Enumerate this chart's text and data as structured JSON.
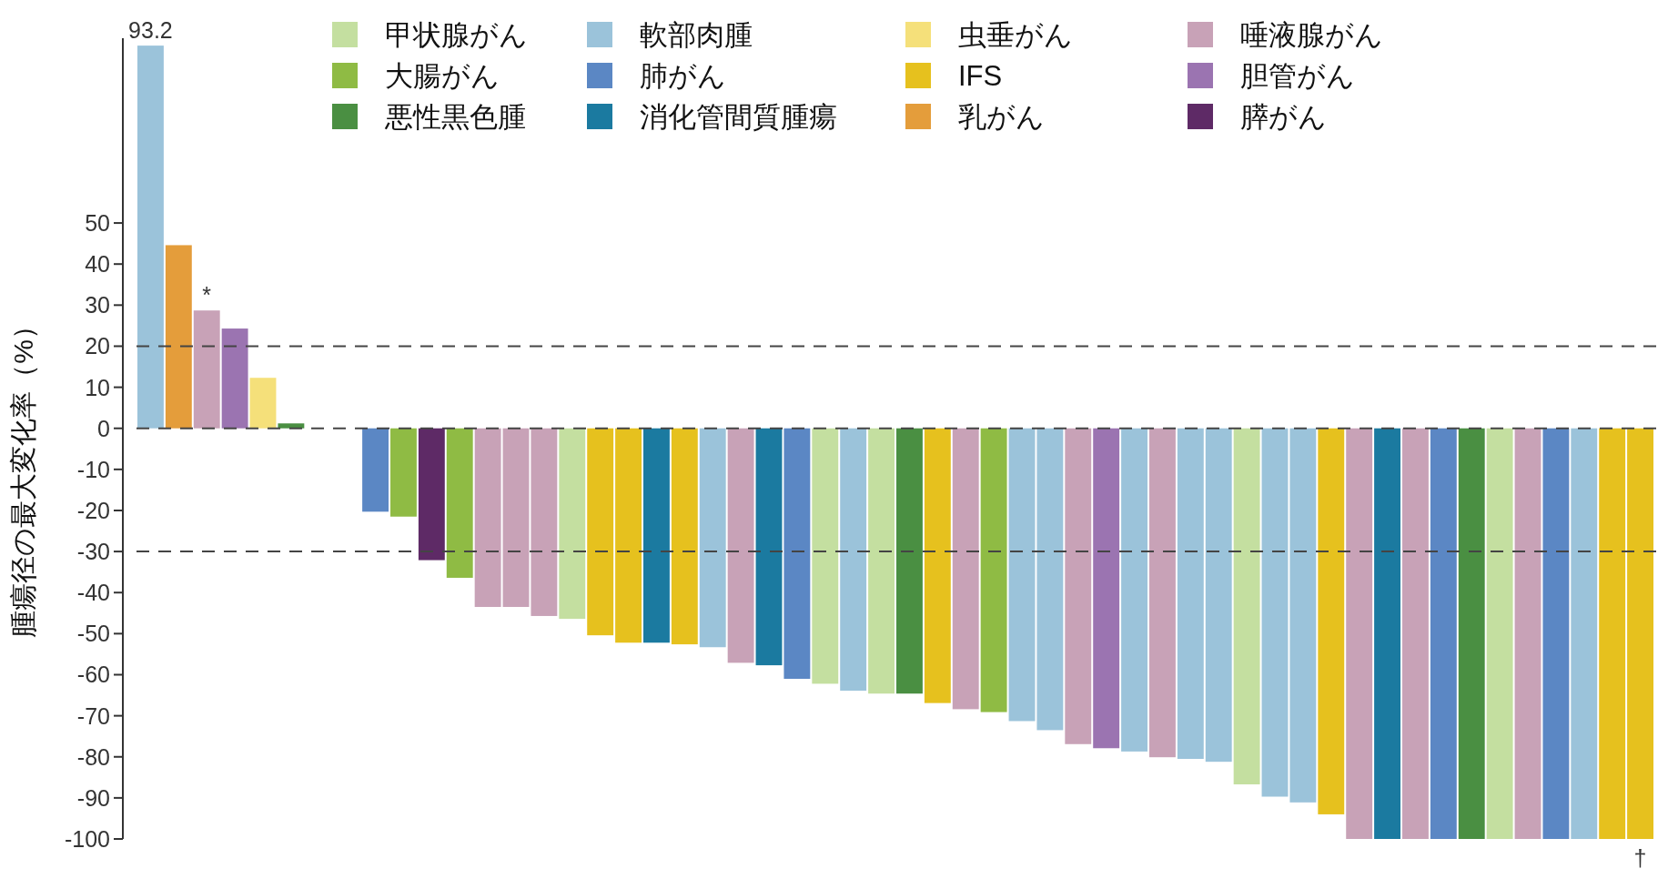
{
  "chart_data": {
    "type": "bar",
    "ylabel": "腫瘍径の最大変化率（%）",
    "categories": [
      null,
      null,
      null,
      null,
      null,
      null,
      null,
      null,
      null,
      null,
      null,
      null,
      null,
      null,
      null,
      null,
      null,
      null,
      null,
      null,
      null,
      null,
      null,
      null,
      null,
      null,
      null,
      null,
      null,
      null,
      null,
      null,
      null,
      null,
      null,
      null,
      null,
      null,
      null,
      null,
      null,
      null,
      null,
      null,
      null,
      null,
      null,
      null,
      null,
      null,
      null,
      null,
      null,
      null
    ],
    "ylim": [
      -100,
      95
    ],
    "yticks": [
      -100,
      -90,
      -80,
      -70,
      -60,
      -50,
      -40,
      -30,
      -20,
      -10,
      0,
      10,
      20,
      30,
      40,
      50
    ],
    "legend": "top",
    "grid": false,
    "ref_lines": [
      {
        "axis": "y",
        "value": 20,
        "line_style": "dashed",
        "color": "#444444"
      },
      {
        "axis": "y",
        "value": 0,
        "line_style": "dashed",
        "color": "#444444"
      },
      {
        "axis": "y",
        "value": -30,
        "line_style": "dashed",
        "color": "#444444"
      }
    ],
    "series": [
      {
        "name": "甲状腺がん",
        "color": "#c4dfa0",
        "values": [
          null,
          null,
          null,
          null,
          null,
          null,
          null,
          null,
          null,
          null,
          null,
          null,
          null,
          null,
          null,
          -46.4,
          null,
          null,
          null,
          null,
          null,
          null,
          null,
          null,
          -62.2,
          null,
          -64.6,
          null,
          null,
          null,
          null,
          null,
          null,
          null,
          null,
          null,
          null,
          null,
          null,
          -86.7,
          null,
          null,
          null,
          null,
          null,
          null,
          null,
          null,
          -100,
          null,
          null,
          null,
          null,
          null
        ]
      },
      {
        "name": "大腸がん",
        "color": "#8fbb44",
        "values": [
          null,
          null,
          null,
          null,
          null,
          null,
          null,
          null,
          null,
          -21.5,
          null,
          -36.4,
          null,
          null,
          null,
          null,
          null,
          null,
          null,
          null,
          null,
          null,
          null,
          null,
          null,
          null,
          null,
          null,
          null,
          null,
          -69.1,
          null,
          null,
          null,
          null,
          null,
          null,
          null,
          null,
          null,
          null,
          null,
          null,
          null,
          null,
          null,
          null,
          null,
          null,
          null,
          null,
          null,
          null,
          null
        ]
      },
      {
        "name": "悪性黒色腫",
        "color": "#4a8f42",
        "values": [
          null,
          null,
          null,
          null,
          null,
          1.2,
          null,
          null,
          null,
          null,
          null,
          null,
          null,
          null,
          null,
          null,
          null,
          null,
          null,
          null,
          null,
          null,
          null,
          null,
          null,
          null,
          null,
          -64.6,
          null,
          null,
          null,
          null,
          null,
          null,
          null,
          null,
          null,
          null,
          null,
          null,
          null,
          null,
          null,
          null,
          null,
          null,
          null,
          -100,
          null,
          null,
          null,
          null,
          null,
          null
        ]
      },
      {
        "name": "軟部肉腫",
        "color": "#9bc3da",
        "value_labels": [
          "93.2",
          null,
          null,
          null,
          null,
          null,
          null,
          null,
          null,
          null,
          null,
          null,
          null,
          null,
          null,
          null,
          null,
          null,
          null,
          null,
          null,
          null,
          null,
          null,
          null,
          null,
          null,
          null,
          null,
          null,
          null,
          null,
          null,
          null,
          null,
          null,
          null,
          null,
          null,
          null,
          null,
          null,
          null,
          null,
          null,
          null,
          null,
          null,
          null,
          null,
          null,
          null,
          null,
          null
        ],
        "values": [
          93.2,
          null,
          null,
          null,
          null,
          null,
          null,
          null,
          null,
          null,
          null,
          null,
          null,
          null,
          null,
          null,
          null,
          null,
          null,
          null,
          -53.3,
          null,
          null,
          null,
          null,
          -63.9,
          null,
          null,
          null,
          null,
          null,
          -71.3,
          -73.5,
          null,
          null,
          -78.7,
          null,
          -80.5,
          -81.2,
          null,
          -89.7,
          -91.1,
          null,
          null,
          null,
          null,
          null,
          null,
          null,
          null,
          null,
          -100,
          null,
          null
        ]
      },
      {
        "name": "肺がん",
        "color": "#5b87c4",
        "values": [
          null,
          null,
          null,
          null,
          null,
          null,
          null,
          null,
          -20.3,
          null,
          null,
          null,
          null,
          null,
          null,
          null,
          null,
          null,
          null,
          null,
          null,
          null,
          null,
          -61.0,
          null,
          null,
          null,
          null,
          null,
          null,
          null,
          null,
          null,
          null,
          null,
          null,
          null,
          null,
          null,
          null,
          null,
          null,
          null,
          null,
          null,
          null,
          -100,
          null,
          null,
          null,
          -100,
          null,
          null,
          null
        ]
      },
      {
        "name": "消化管間質腫瘍",
        "color": "#1b7aa0",
        "values": [
          null,
          null,
          null,
          null,
          null,
          null,
          null,
          null,
          null,
          null,
          null,
          null,
          null,
          null,
          null,
          null,
          null,
          null,
          -52.2,
          null,
          null,
          null,
          -57.7,
          null,
          null,
          null,
          null,
          null,
          null,
          null,
          null,
          null,
          null,
          null,
          null,
          null,
          null,
          null,
          null,
          null,
          null,
          null,
          null,
          null,
          -100,
          null,
          null,
          null,
          null,
          null,
          null,
          null,
          null,
          null
        ]
      },
      {
        "name": "虫垂がん",
        "color": "#f5e07a",
        "values": [
          null,
          null,
          null,
          null,
          12.3,
          null,
          null,
          null,
          null,
          null,
          null,
          null,
          null,
          null,
          null,
          null,
          null,
          null,
          null,
          null,
          null,
          null,
          null,
          null,
          null,
          null,
          null,
          null,
          null,
          null,
          null,
          null,
          null,
          null,
          null,
          null,
          null,
          null,
          null,
          null,
          null,
          null,
          null,
          null,
          null,
          null,
          null,
          null,
          null,
          null,
          null,
          null,
          null,
          null
        ]
      },
      {
        "name": "IFS",
        "color": "#e6c11e",
        "value_labels": [
          null,
          null,
          null,
          null,
          null,
          null,
          null,
          null,
          null,
          null,
          null,
          null,
          null,
          null,
          null,
          null,
          null,
          null,
          null,
          null,
          null,
          null,
          null,
          null,
          null,
          null,
          null,
          null,
          null,
          null,
          null,
          null,
          null,
          null,
          null,
          null,
          null,
          null,
          null,
          null,
          null,
          null,
          null,
          null,
          null,
          null,
          null,
          null,
          null,
          null,
          null,
          null,
          null,
          "†"
        ],
        "values": [
          null,
          null,
          null,
          null,
          null,
          null,
          null,
          null,
          null,
          null,
          null,
          null,
          null,
          null,
          null,
          null,
          -50.4,
          -52.2,
          null,
          -52.6,
          null,
          null,
          null,
          null,
          null,
          null,
          null,
          null,
          -66.9,
          null,
          null,
          null,
          null,
          null,
          null,
          null,
          null,
          null,
          null,
          null,
          null,
          null,
          -94.0,
          null,
          null,
          null,
          null,
          null,
          null,
          null,
          null,
          null,
          -100,
          -100
        ]
      },
      {
        "name": "乳がん",
        "color": "#e49d3b",
        "values": [
          null,
          44.6,
          null,
          null,
          null,
          null,
          null,
          null,
          null,
          null,
          null,
          null,
          null,
          null,
          null,
          null,
          null,
          null,
          null,
          null,
          null,
          null,
          null,
          null,
          null,
          null,
          null,
          null,
          null,
          null,
          null,
          null,
          null,
          null,
          null,
          null,
          null,
          null,
          null,
          null,
          null,
          null,
          null,
          null,
          null,
          null,
          null,
          null,
          null,
          null,
          null,
          null,
          null,
          null
        ]
      },
      {
        "name": "唾液腺がん",
        "color": "#c8a2b7",
        "value_labels": [
          null,
          null,
          "*",
          null,
          null,
          null,
          null,
          null,
          null,
          null,
          null,
          null,
          null,
          null,
          null,
          null,
          null,
          null,
          null,
          null,
          null,
          null,
          null,
          null,
          null,
          null,
          null,
          null,
          null,
          null,
          null,
          null,
          null,
          null,
          null,
          null,
          null,
          null,
          null,
          null,
          null,
          null,
          null,
          null,
          null,
          null,
          null,
          null,
          null,
          null,
          null,
          null,
          null,
          null
        ],
        "values": [
          null,
          null,
          28.7,
          null,
          null,
          null,
          null,
          null,
          null,
          null,
          null,
          null,
          -43.5,
          -43.5,
          -45.7,
          null,
          null,
          null,
          null,
          null,
          null,
          -57.1,
          null,
          null,
          null,
          null,
          null,
          null,
          null,
          -68.4,
          null,
          null,
          null,
          -76.9,
          null,
          null,
          -80.1,
          null,
          null,
          null,
          null,
          null,
          null,
          -100,
          null,
          -100,
          null,
          null,
          null,
          -100,
          null,
          null,
          null,
          null
        ]
      },
      {
        "name": "胆管がん",
        "color": "#9b74b1",
        "values": [
          null,
          null,
          null,
          24.3,
          null,
          null,
          null,
          null,
          null,
          null,
          null,
          null,
          null,
          null,
          null,
          null,
          null,
          null,
          null,
          null,
          null,
          null,
          null,
          null,
          null,
          null,
          null,
          null,
          null,
          null,
          null,
          null,
          null,
          null,
          -77.9,
          null,
          null,
          null,
          null,
          null,
          null,
          null,
          null,
          null,
          null,
          null,
          null,
          null,
          null,
          null,
          null,
          null,
          null,
          null
        ]
      },
      {
        "name": "膵がん",
        "color": "#5e2a66",
        "values": [
          null,
          null,
          null,
          null,
          null,
          null,
          null,
          null,
          null,
          null,
          -32.1,
          null,
          null,
          null,
          null,
          null,
          null,
          null,
          null,
          null,
          null,
          null,
          null,
          null,
          null,
          null,
          null,
          null,
          null,
          null,
          null,
          null,
          null,
          null,
          null,
          null,
          null,
          null,
          null,
          null,
          null,
          null,
          null,
          null,
          null,
          null,
          null,
          null,
          null,
          null,
          null,
          null,
          null,
          null
        ]
      }
    ]
  }
}
